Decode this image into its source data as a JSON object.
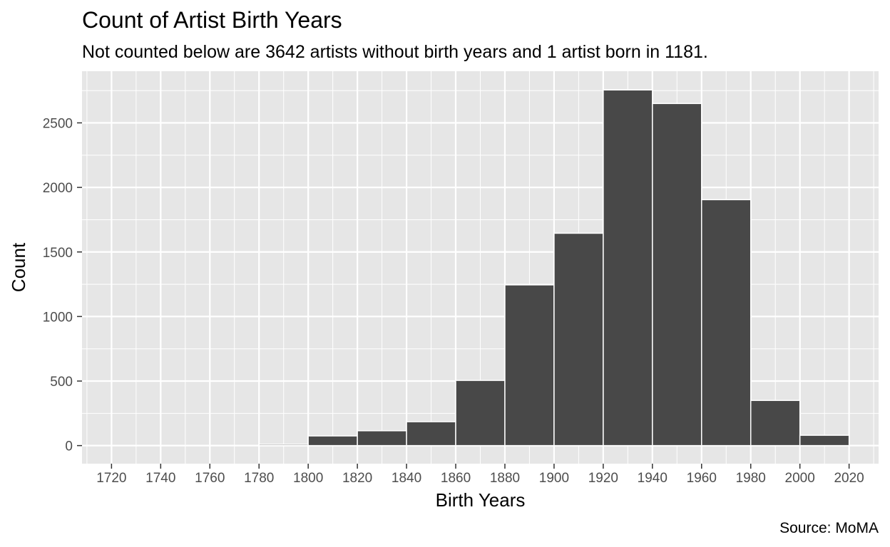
{
  "chart_data": {
    "type": "bar",
    "title": "Count of Artist Birth Years",
    "subtitle": "Not counted below are 3642 artists without birth years and 1 artist born in 1181.",
    "caption": "Source: MoMA",
    "xlabel": "Birth Years",
    "ylabel": "Count",
    "bins": [
      {
        "start": 1780,
        "end": 1800,
        "count": 10
      },
      {
        "start": 1800,
        "end": 1820,
        "count": 75
      },
      {
        "start": 1820,
        "end": 1840,
        "count": 115
      },
      {
        "start": 1840,
        "end": 1860,
        "count": 185
      },
      {
        "start": 1860,
        "end": 1880,
        "count": 505
      },
      {
        "start": 1880,
        "end": 1900,
        "count": 1245
      },
      {
        "start": 1900,
        "end": 1920,
        "count": 1645
      },
      {
        "start": 1920,
        "end": 1940,
        "count": 2755
      },
      {
        "start": 1940,
        "end": 1960,
        "count": 2650
      },
      {
        "start": 1960,
        "end": 1980,
        "count": 1905
      },
      {
        "start": 1980,
        "end": 2000,
        "count": 350
      },
      {
        "start": 2000,
        "end": 2020,
        "count": 80
      }
    ],
    "xlim": [
      1708,
      2032
    ],
    "ylim": [
      -140,
      2900
    ],
    "x_ticks": [
      1720,
      1740,
      1760,
      1780,
      1800,
      1820,
      1840,
      1860,
      1880,
      1900,
      1920,
      1940,
      1960,
      1980,
      2000,
      2020
    ],
    "y_ticks": [
      0,
      500,
      1000,
      1500,
      2000,
      2500
    ],
    "grid": true,
    "bar_color": "#484848",
    "bar_outline_color": "#ffffff",
    "panel_background": "#e6e6e6",
    "grid_color": "#ffffff"
  }
}
